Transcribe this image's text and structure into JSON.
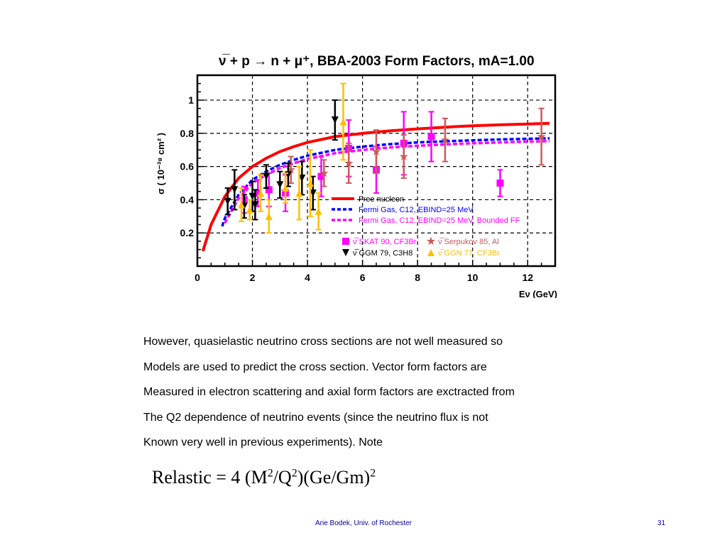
{
  "chart_data": {
    "type": "scatter",
    "title": "ν̅ + p → n + μ⁺, BBA-2003 Form Factors, mA=1.00",
    "xlabel": "Eν (GeV)",
    "ylabel": "σ ( 10⁻³⁸ cm² )",
    "xlim": [
      0,
      13
    ],
    "ylim": [
      0,
      1.15
    ],
    "xticks": [
      0,
      2,
      4,
      6,
      8,
      10,
      12
    ],
    "yticks": [
      0.2,
      0.4,
      0.6,
      0.8,
      1
    ],
    "grid": true,
    "legend_position": "bottom-right",
    "curves": [
      {
        "name": "Free nucleon",
        "color": "#ff0000",
        "style": "solid",
        "x": [
          0.2,
          0.5,
          1.0,
          1.5,
          2.0,
          2.5,
          3.0,
          3.5,
          4.0,
          5.0,
          6.0,
          7.0,
          8.0,
          9.0,
          10.0,
          11.0,
          12.0,
          12.8
        ],
        "y": [
          0.09,
          0.25,
          0.42,
          0.53,
          0.6,
          0.65,
          0.69,
          0.72,
          0.745,
          0.78,
          0.8,
          0.815,
          0.827,
          0.837,
          0.845,
          0.851,
          0.856,
          0.86
        ]
      },
      {
        "name": "Fermi Gas, C12, EBIND=25 MeV",
        "color": "#0000ff",
        "style": "dashed",
        "x": [
          0.9,
          1.0,
          1.5,
          2.0,
          2.5,
          3.0,
          3.5,
          4.0,
          5.0,
          6.0,
          7.0,
          8.0,
          9.0,
          10.0,
          11.0,
          12.0,
          12.8
        ],
        "y": [
          0.24,
          0.29,
          0.43,
          0.52,
          0.57,
          0.61,
          0.64,
          0.665,
          0.7,
          0.72,
          0.735,
          0.745,
          0.752,
          0.758,
          0.763,
          0.767,
          0.77
        ]
      },
      {
        "name": "Fermi Gas, C12, EBIND=25 MeV, Bounded FF",
        "color": "#ff00ff",
        "style": "dashed",
        "x": [
          1.0,
          1.5,
          2.0,
          2.5,
          3.0,
          3.5,
          4.0,
          5.0,
          6.0,
          7.0,
          8.0,
          9.0,
          10.0,
          11.0,
          12.0,
          12.8
        ],
        "y": [
          0.26,
          0.41,
          0.5,
          0.55,
          0.59,
          0.62,
          0.645,
          0.68,
          0.7,
          0.715,
          0.725,
          0.733,
          0.74,
          0.745,
          0.75,
          0.753
        ]
      }
    ],
    "datasets": [
      {
        "name": "ν̅ SKAT 90, CF3Br",
        "color": "#ff00ff",
        "marker": "square",
        "points": [
          {
            "x": 1.7,
            "y": 0.4,
            "err": 0.08
          },
          {
            "x": 2.2,
            "y": 0.44,
            "err": 0.08
          },
          {
            "x": 2.6,
            "y": 0.46,
            "err": 0.1
          },
          {
            "x": 3.2,
            "y": 0.44,
            "err": 0.11
          },
          {
            "x": 4.5,
            "y": 0.54,
            "err": 0.12
          },
          {
            "x": 5.5,
            "y": 0.71,
            "err": 0.17
          },
          {
            "x": 6.5,
            "y": 0.58,
            "err": 0.14
          },
          {
            "x": 7.5,
            "y": 0.74,
            "err": 0.19
          },
          {
            "x": 8.5,
            "y": 0.78,
            "err": 0.15
          },
          {
            "x": 11.0,
            "y": 0.5,
            "err": 0.08
          }
        ]
      },
      {
        "name": "ν̅ Serpukov 85, Al",
        "color": "#cc5a5a",
        "marker": "star",
        "points": [
          {
            "x": 3.4,
            "y": 0.58,
            "err": 0.08
          },
          {
            "x": 4.6,
            "y": 0.56,
            "err": 0.08
          },
          {
            "x": 5.5,
            "y": 0.62,
            "err": 0.12
          },
          {
            "x": 6.5,
            "y": 0.69,
            "err": 0.13
          },
          {
            "x": 7.5,
            "y": 0.66,
            "err": 0.13
          },
          {
            "x": 9.0,
            "y": 0.76,
            "err": 0.13
          },
          {
            "x": 12.5,
            "y": 0.78,
            "err": 0.17
          }
        ]
      },
      {
        "name": "ν̅ GGM 79, C3H8",
        "color": "#000000",
        "marker": "triangle-down",
        "points": [
          {
            "x": 1.1,
            "y": 0.39,
            "err": 0.08
          },
          {
            "x": 1.35,
            "y": 0.46,
            "err": 0.12
          },
          {
            "x": 1.7,
            "y": 0.36,
            "err": 0.07
          },
          {
            "x": 2.0,
            "y": 0.42,
            "err": 0.09
          },
          {
            "x": 2.1,
            "y": 0.37,
            "err": 0.09
          },
          {
            "x": 2.5,
            "y": 0.54,
            "err": 0.07
          },
          {
            "x": 3.0,
            "y": 0.49,
            "err": 0.08
          },
          {
            "x": 3.3,
            "y": 0.55,
            "err": 0.07
          },
          {
            "x": 3.8,
            "y": 0.53,
            "err": 0.1
          },
          {
            "x": 4.2,
            "y": 0.44,
            "err": 0.1
          },
          {
            "x": 5.0,
            "y": 0.88,
            "err": 0.12
          }
        ]
      },
      {
        "name": "ν̅ GGN 77, CF3Br",
        "color": "#ffc000",
        "marker": "triangle-up",
        "points": [
          {
            "x": 1.6,
            "y": 0.37,
            "err": 0.1
          },
          {
            "x": 1.9,
            "y": 0.34,
            "err": 0.06
          },
          {
            "x": 2.3,
            "y": 0.44,
            "err": 0.11
          },
          {
            "x": 2.6,
            "y": 0.3,
            "err": 0.1
          },
          {
            "x": 3.2,
            "y": 0.47,
            "err": 0.09
          },
          {
            "x": 3.7,
            "y": 0.44,
            "err": 0.16
          },
          {
            "x": 4.1,
            "y": 0.5,
            "err": 0.2
          },
          {
            "x": 4.4,
            "y": 0.33,
            "err": 0.11
          },
          {
            "x": 5.3,
            "y": 0.87,
            "err": 0.23
          }
        ]
      }
    ]
  },
  "text": {
    "lines": [
      "However, quasielastic neutrino cross sections are not well measured so",
      "Models are  used to predict the cross section. Vector form factors are",
      "Measured in electron scattering and axial form factors are exctracted from",
      "The Q2 dependence of neutrino events (since the neutrino flux is not",
      "Known very well in previous experiments).  Note"
    ]
  },
  "formula": {
    "a": "Relastic = 4 (M",
    "sup1": "2",
    "b": "/Q",
    "sup2": "2",
    "c": ")(Ge/Gm)",
    "sup3": "2"
  },
  "footer": {
    "author": "Arie Bodek,  Univ. of Rochester",
    "page": "31"
  }
}
